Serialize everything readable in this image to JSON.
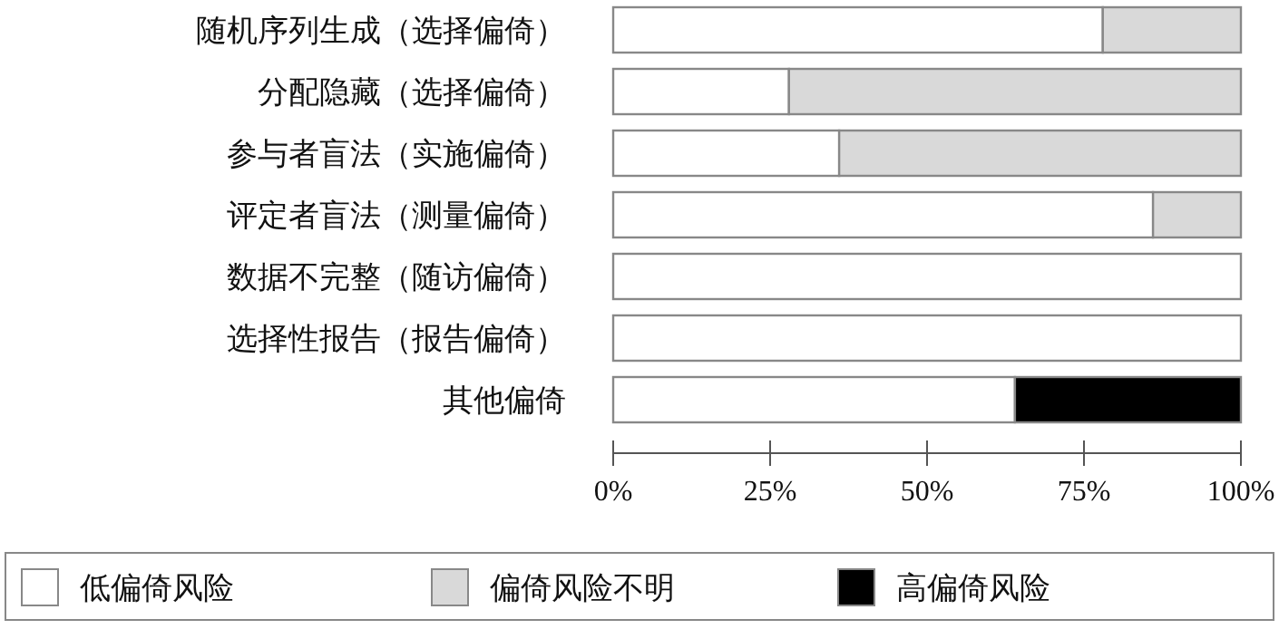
{
  "chart_data": {
    "type": "bar",
    "orientation": "horizontal",
    "stacked": true,
    "legend": "bottom",
    "categories": [
      "随机序列生成（选择偏倚）",
      "分配隐藏（选择偏倚）",
      "参与者盲法（实施偏倚）",
      "评定者盲法（测量偏倚）",
      "数据不完整（随访偏倚）",
      "选择性报告（报告偏倚）",
      "其他偏倚"
    ],
    "series": [
      {
        "name": "低偏倚风险",
        "color": "#ffffff",
        "values": [
          78,
          28,
          36,
          86,
          100,
          100,
          64
        ]
      },
      {
        "name": "偏倚风险不明",
        "color": "#d9d9d9",
        "values": [
          22,
          72,
          64,
          14,
          0,
          0,
          0
        ]
      },
      {
        "name": "高偏倚风险",
        "color": "#000000",
        "values": [
          0,
          0,
          0,
          0,
          0,
          0,
          36
        ]
      }
    ],
    "xlim": [
      0,
      100
    ],
    "xticks": [
      {
        "value": 0,
        "label": "0%"
      },
      {
        "value": 25,
        "label": "25%"
      },
      {
        "value": 50,
        "label": "50%"
      },
      {
        "value": 75,
        "label": "75%"
      },
      {
        "value": 100,
        "label": "100%"
      }
    ]
  }
}
